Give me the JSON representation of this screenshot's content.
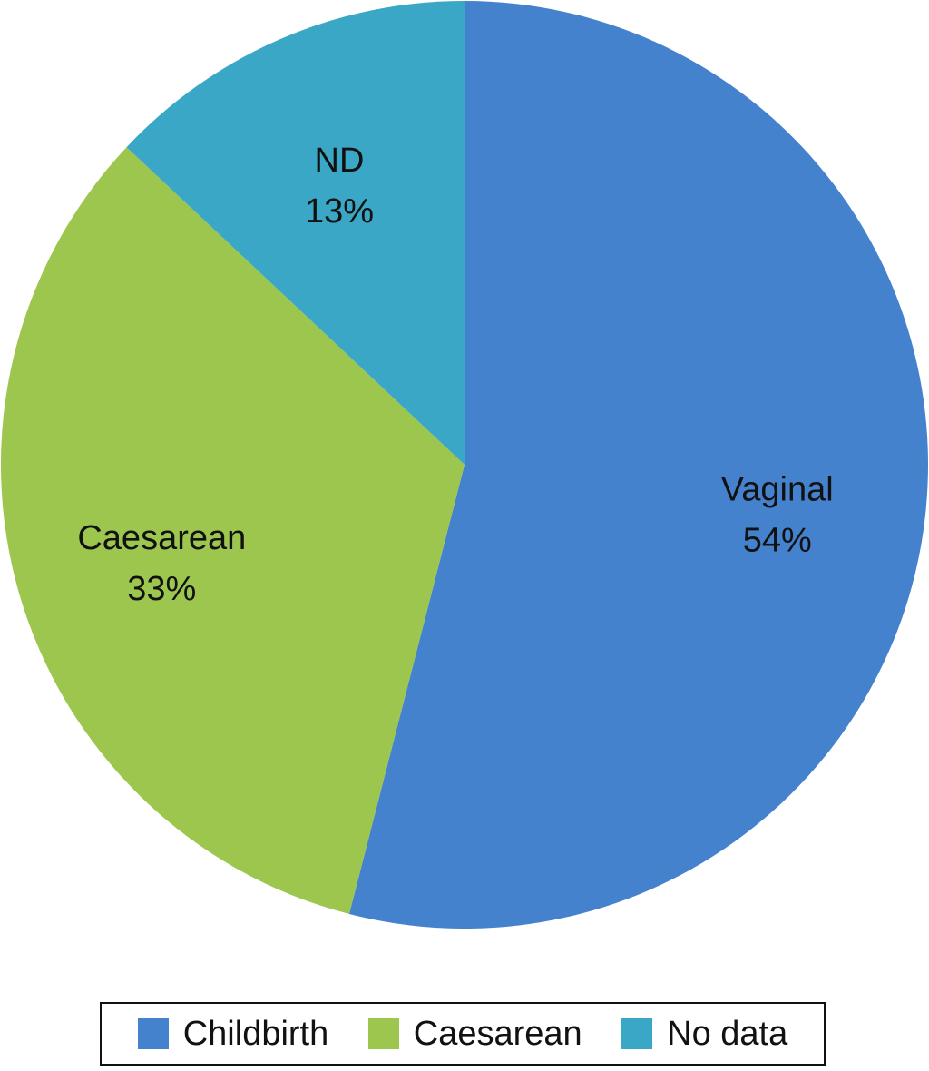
{
  "chart_data": {
    "type": "pie",
    "slices": [
      {
        "label": "Vaginal",
        "value": 54,
        "value_label": "54%",
        "color": "#4582cd"
      },
      {
        "label": "Caesarean",
        "value": 33,
        "value_label": "33%",
        "color": "#9dc64f"
      },
      {
        "label": "ND",
        "value": 13,
        "value_label": "13%",
        "color": "#3ba7c6"
      }
    ],
    "legend": {
      "placement": "bottom",
      "entries": [
        {
          "label": "Childbirth",
          "color": "#4582cd"
        },
        {
          "label": "Caesarean",
          "color": "#9dc64f"
        },
        {
          "label": "No data",
          "color": "#3ba7c6"
        }
      ]
    }
  }
}
